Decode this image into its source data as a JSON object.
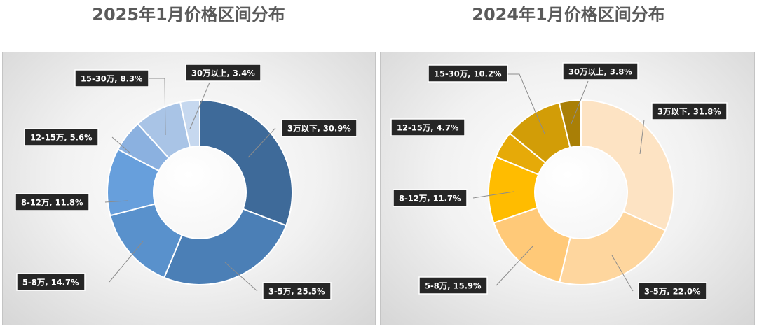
{
  "chart_data": [
    {
      "type": "pie",
      "title": "2025年1月价格区间分布",
      "categories": [
        "3万以下",
        "3-5万",
        "5-8万",
        "8-12万",
        "12-15万",
        "15-30万",
        "30万以上"
      ],
      "values": [
        30.9,
        25.5,
        14.7,
        11.8,
        5.6,
        8.3,
        3.4
      ],
      "unit": "%",
      "data_labels": [
        "3万以下, 30.9%",
        "3-5万, 25.5%",
        "5-8万, 14.7%",
        "8-12万, 11.8%",
        "12-15万, 5.6%",
        "15-30万, 8.3%",
        "30万以上, 3.4%"
      ],
      "colors": [
        "#3e6a99",
        "#4b7fb6",
        "#5991cc",
        "#679fdc",
        "#8bb1e0",
        "#a9c4e6",
        "#c6d8ef"
      ],
      "legend": "none",
      "donut": true
    },
    {
      "type": "pie",
      "title": "2024年1月价格区间分布",
      "categories": [
        "3万以下",
        "3-5万",
        "5-8万",
        "8-12万",
        "12-15万",
        "15-30万",
        "30万以上"
      ],
      "values": [
        31.8,
        22.0,
        15.9,
        11.7,
        4.7,
        10.2,
        3.8
      ],
      "unit": "%",
      "data_labels": [
        "3万以下, 31.8%",
        "3-5万, 22.0%",
        "5-8万, 15.9%",
        "8-12万, 11.7%",
        "12-15万, 4.7%",
        "15-30万, 10.2%",
        "30万以上, 3.8%"
      ],
      "colors": [
        "#fde3c3",
        "#fed69e",
        "#ffc978",
        "#ffbc00",
        "#e6aa08",
        "#d29d07",
        "#a97f06"
      ],
      "legend": "none",
      "donut": true
    }
  ]
}
